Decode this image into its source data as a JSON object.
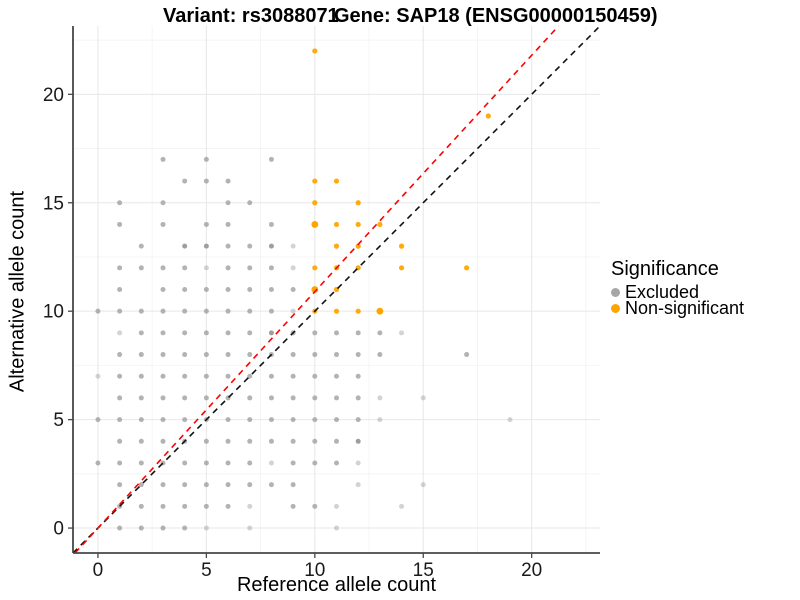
{
  "titles": {
    "variant": "Variant: rs3088071",
    "gene": "Gene: SAP18 (ENSG00000150459)"
  },
  "axes": {
    "x_label": "Reference allele count",
    "y_label": "Alternative allele count",
    "x_ticks": [
      0,
      5,
      10,
      15,
      20
    ],
    "y_ticks": [
      0,
      5,
      10,
      15,
      20
    ]
  },
  "legend": {
    "title": "Significance",
    "items": [
      {
        "label": "Excluded",
        "color": "#A6A6A6"
      },
      {
        "label": "Non-significant",
        "color": "#FFA500"
      }
    ]
  },
  "colors": {
    "excluded": "#9E9E9E",
    "non_significant": "#FFA500",
    "identity_line": "#111111",
    "ratio_line": "#FF0000",
    "grid_major": "#E7E7E7",
    "grid_minor": "#F4F4F4",
    "axis_line": "#474747",
    "tick_text": "#1A1A1A"
  },
  "chart_data": {
    "type": "scatter",
    "title": "Variant: rs3088071 / Gene: SAP18 (ENSG00000150459)",
    "xlabel": "Reference allele count",
    "ylabel": "Alternative allele count",
    "xlim": [
      -1.15,
      23.15
    ],
    "ylim": [
      -1.15,
      23.15
    ],
    "grid": true,
    "legend_position": "right",
    "x_ticks": [
      0,
      5,
      10,
      15,
      20
    ],
    "y_ticks": [
      0,
      5,
      10,
      15,
      20
    ],
    "minor_tick_step": 2.5,
    "series": [
      {
        "name": "Excluded",
        "color": "#9E9E9E",
        "base_opacity": 0.78,
        "base_radius": 2.5,
        "points": [
          [
            3,
            17
          ],
          [
            5,
            17
          ],
          [
            8,
            17
          ],
          [
            4,
            16
          ],
          [
            5,
            16
          ],
          [
            6,
            16
          ],
          [
            1,
            15
          ],
          [
            3,
            15
          ],
          [
            6,
            15
          ],
          [
            7,
            15
          ],
          [
            1,
            14
          ],
          [
            3,
            14
          ],
          [
            5,
            14
          ],
          [
            6,
            14
          ],
          [
            8,
            14
          ],
          [
            2,
            13
          ],
          [
            4,
            13,
            1
          ],
          [
            5,
            13,
            1
          ],
          [
            6,
            13
          ],
          [
            7,
            13
          ],
          [
            8,
            13,
            1
          ],
          [
            9,
            13,
            0.45
          ],
          [
            1,
            12
          ],
          [
            2,
            12
          ],
          [
            3,
            12
          ],
          [
            4,
            12
          ],
          [
            5,
            12,
            0.45
          ],
          [
            6,
            12
          ],
          [
            7,
            12
          ],
          [
            8,
            12
          ],
          [
            9,
            12,
            0.45
          ],
          [
            1,
            11
          ],
          [
            3,
            11
          ],
          [
            4,
            11
          ],
          [
            5,
            11
          ],
          [
            6,
            11
          ],
          [
            7,
            11
          ],
          [
            8,
            11
          ],
          [
            9,
            11
          ],
          [
            0,
            10
          ],
          [
            1,
            10
          ],
          [
            2,
            10
          ],
          [
            3,
            10
          ],
          [
            4,
            10
          ],
          [
            5,
            10
          ],
          [
            6,
            10
          ],
          [
            7,
            10
          ],
          [
            8,
            10
          ],
          [
            9,
            10,
            0.45
          ],
          [
            1,
            9,
            0.45
          ],
          [
            2,
            9
          ],
          [
            3,
            9
          ],
          [
            4,
            9
          ],
          [
            5,
            9
          ],
          [
            6,
            9
          ],
          [
            7,
            9
          ],
          [
            8,
            9,
            1
          ],
          [
            9,
            9
          ],
          [
            10,
            9
          ],
          [
            11,
            9
          ],
          [
            12,
            9
          ],
          [
            13,
            9
          ],
          [
            14,
            9,
            0.45
          ],
          [
            1,
            8
          ],
          [
            2,
            8
          ],
          [
            3,
            8
          ],
          [
            4,
            8
          ],
          [
            5,
            8
          ],
          [
            6,
            8
          ],
          [
            7,
            8
          ],
          [
            8,
            8
          ],
          [
            9,
            8
          ],
          [
            10,
            8
          ],
          [
            11,
            8
          ],
          [
            12,
            8
          ],
          [
            13,
            8
          ],
          [
            17,
            8
          ],
          [
            0,
            7,
            0.45
          ],
          [
            1,
            7
          ],
          [
            2,
            7
          ],
          [
            3,
            7
          ],
          [
            4,
            7
          ],
          [
            5,
            7
          ],
          [
            6,
            7
          ],
          [
            7,
            7
          ],
          [
            8,
            7
          ],
          [
            9,
            7
          ],
          [
            10,
            7
          ],
          [
            11,
            7
          ],
          [
            12,
            7
          ],
          [
            1,
            6
          ],
          [
            2,
            6
          ],
          [
            3,
            6
          ],
          [
            4,
            6
          ],
          [
            5,
            6
          ],
          [
            6,
            6
          ],
          [
            7,
            6
          ],
          [
            8,
            6
          ],
          [
            9,
            6
          ],
          [
            10,
            6
          ],
          [
            11,
            6
          ],
          [
            12,
            6
          ],
          [
            13,
            6,
            0.45
          ],
          [
            15,
            6,
            0.45
          ],
          [
            0,
            5
          ],
          [
            1,
            5
          ],
          [
            2,
            5
          ],
          [
            3,
            5
          ],
          [
            4,
            5
          ],
          [
            5,
            5
          ],
          [
            6,
            5
          ],
          [
            7,
            5
          ],
          [
            8,
            5
          ],
          [
            9,
            5
          ],
          [
            10,
            5
          ],
          [
            11,
            5
          ],
          [
            12,
            5
          ],
          [
            13,
            5,
            0.45
          ],
          [
            19,
            5,
            0.45
          ],
          [
            1,
            4
          ],
          [
            2,
            4
          ],
          [
            3,
            4
          ],
          [
            4,
            4
          ],
          [
            5,
            4
          ],
          [
            6,
            4
          ],
          [
            7,
            4
          ],
          [
            8,
            4
          ],
          [
            9,
            4
          ],
          [
            10,
            4
          ],
          [
            11,
            4
          ],
          [
            12,
            4,
            1
          ],
          [
            0,
            3
          ],
          [
            1,
            3
          ],
          [
            2,
            3
          ],
          [
            3,
            3
          ],
          [
            4,
            3
          ],
          [
            5,
            3
          ],
          [
            6,
            3
          ],
          [
            7,
            3
          ],
          [
            8,
            3,
            0.45
          ],
          [
            9,
            3
          ],
          [
            10,
            3
          ],
          [
            11,
            3
          ],
          [
            12,
            3,
            0.45
          ],
          [
            1,
            2
          ],
          [
            2,
            2
          ],
          [
            3,
            2
          ],
          [
            4,
            2
          ],
          [
            5,
            2
          ],
          [
            6,
            2
          ],
          [
            7,
            2
          ],
          [
            8,
            2
          ],
          [
            9,
            2
          ],
          [
            12,
            2,
            0.45
          ],
          [
            15,
            2,
            0.45
          ],
          [
            1,
            1
          ],
          [
            2,
            1
          ],
          [
            3,
            1
          ],
          [
            4,
            1
          ],
          [
            5,
            1
          ],
          [
            6,
            1
          ],
          [
            7,
            1,
            0.45
          ],
          [
            9,
            1
          ],
          [
            10,
            1
          ],
          [
            11,
            1,
            0.45
          ],
          [
            14,
            1,
            0.45
          ],
          [
            1,
            0
          ],
          [
            2,
            0
          ],
          [
            3,
            0
          ],
          [
            4,
            0
          ],
          [
            5,
            0,
            0.45
          ],
          [
            7,
            0,
            0.45
          ],
          [
            11,
            0,
            0.45
          ]
        ]
      },
      {
        "name": "Non-significant",
        "color": "#FFA500",
        "base_opacity": 0.95,
        "base_radius": 2.6,
        "points": [
          [
            10,
            22
          ],
          [
            18,
            19
          ],
          [
            10,
            16
          ],
          [
            11,
            16
          ],
          [
            10,
            15
          ],
          [
            12,
            15
          ],
          [
            10,
            14,
            1,
            3.4
          ],
          [
            11,
            14
          ],
          [
            12,
            14
          ],
          [
            13,
            14
          ],
          [
            11,
            13
          ],
          [
            12,
            13
          ],
          [
            14,
            13
          ],
          [
            10,
            12
          ],
          [
            11,
            12
          ],
          [
            12,
            12
          ],
          [
            14,
            12
          ],
          [
            17,
            12
          ],
          [
            10,
            11,
            1,
            3.4
          ],
          [
            11,
            11
          ],
          [
            10,
            10
          ],
          [
            11,
            10
          ],
          [
            12,
            10
          ],
          [
            13,
            10,
            1,
            3.4
          ]
        ]
      }
    ],
    "lines": [
      {
        "name": "identity",
        "slope": 1,
        "intercept": 0,
        "dashed": true,
        "color": "#111111"
      },
      {
        "name": "allelic-ratio",
        "slope": 1.09,
        "intercept": 0,
        "dashed": true,
        "color": "#FF0000"
      }
    ]
  }
}
